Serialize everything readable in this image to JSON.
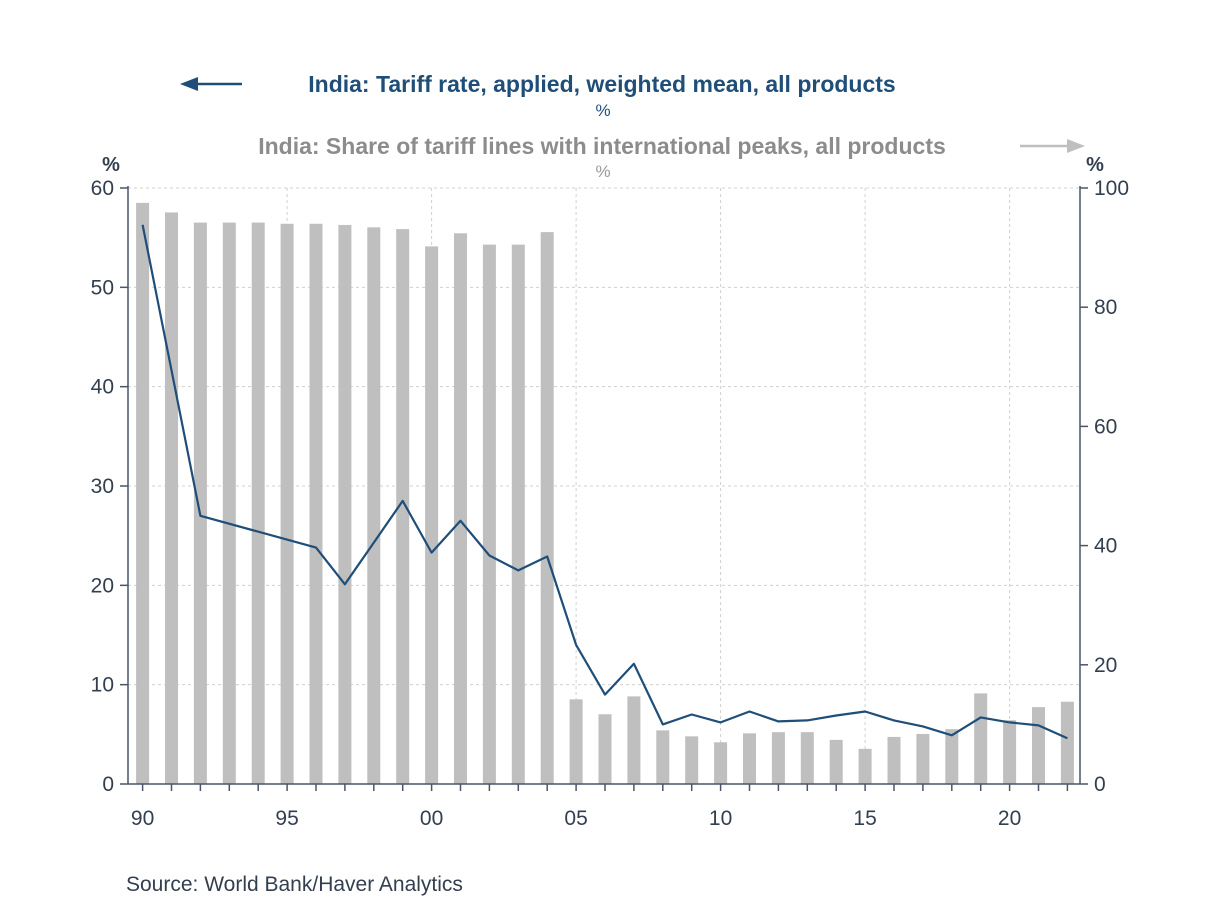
{
  "chart_data": {
    "type": "bar",
    "title": "",
    "legend": {
      "line_series": "India: Tariff rate, applied, weighted mean, all products",
      "line_unit": "%",
      "bar_series": "India: Share of tariff lines with international peaks, all products",
      "bar_unit": "%"
    },
    "left_axis": {
      "unit": "%",
      "ylim": [
        0,
        60
      ],
      "ticks": [
        "0",
        "10",
        "20",
        "30",
        "40",
        "50",
        "60"
      ]
    },
    "right_axis": {
      "unit": "%",
      "ylim": [
        0,
        100
      ],
      "ticks": [
        "0",
        "20",
        "40",
        "60",
        "80",
        "100"
      ]
    },
    "x_ticks": [
      "90",
      "95",
      "00",
      "05",
      "10",
      "15",
      "20"
    ],
    "x": [
      1990,
      1991,
      1992,
      1993,
      1994,
      1995,
      1996,
      1997,
      1998,
      1999,
      2000,
      2001,
      2002,
      2003,
      2004,
      2005,
      2006,
      2007,
      2008,
      2009,
      2010,
      2011,
      2012,
      2013,
      2014,
      2015,
      2016,
      2017,
      2018,
      2019,
      2020,
      2021,
      2022
    ],
    "series": [
      {
        "name": "India: Share of tariff lines with international peaks, all products",
        "axis": "right",
        "kind": "bar",
        "color": "#bfbfbf",
        "values": [
          97.5,
          95.9,
          94.2,
          94.2,
          94.2,
          94.0,
          94.0,
          93.8,
          93.4,
          93.1,
          90.2,
          92.4,
          90.5,
          90.5,
          92.6,
          14.2,
          11.7,
          14.7,
          9.0,
          8.0,
          7.0,
          8.5,
          8.7,
          8.7,
          7.4,
          5.9,
          7.9,
          8.4,
          9.2,
          15.2,
          10.7,
          12.9,
          13.8
        ]
      },
      {
        "name": "India: Tariff rate, applied, weighted mean, all products",
        "axis": "left",
        "kind": "line",
        "color": "#1f4e79",
        "values": [
          56.3,
          null,
          27.0,
          null,
          null,
          null,
          23.8,
          20.1,
          null,
          28.5,
          23.3,
          26.5,
          23.0,
          21.5,
          22.9,
          14.0,
          9.0,
          12.1,
          6.0,
          7.0,
          6.2,
          7.3,
          6.3,
          6.4,
          6.9,
          7.3,
          6.4,
          5.8,
          4.9,
          6.7,
          6.2,
          5.9,
          4.6
        ]
      }
    ],
    "grid": true,
    "source": "Source:  World Bank/Haver Analytics"
  }
}
